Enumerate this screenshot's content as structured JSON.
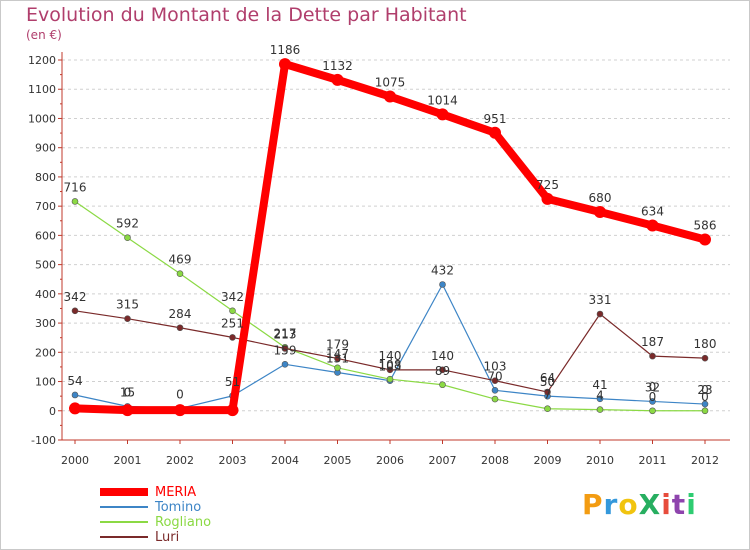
{
  "chart_data": {
    "type": "line",
    "title": "Evolution du Montant de la Dette par Habitant",
    "subtitle": "(en €)",
    "x": [
      "2000",
      "2001",
      "2002",
      "2003",
      "2004",
      "2005",
      "2006",
      "2007",
      "2008",
      "2009",
      "2010",
      "2011",
      "2012"
    ],
    "ylim": [
      -100,
      1200
    ],
    "yticks": [
      -100,
      0,
      100,
      200,
      300,
      400,
      500,
      600,
      700,
      800,
      900,
      1000,
      1100,
      1200
    ],
    "grid": "horizontal dashed",
    "legend_position": "bottom-left",
    "series": [
      {
        "name": "MERIA",
        "color": "#ff0000",
        "values": [
          8,
          2,
          2,
          2,
          1186,
          1132,
          1075,
          1014,
          951,
          725,
          680,
          634,
          586
        ],
        "labels": [
          "",
          "",
          "",
          "",
          "1186",
          "1132",
          "1075",
          "1014",
          "951",
          "725",
          "680",
          "634",
          "586"
        ]
      },
      {
        "name": "Tomino",
        "color": "#3d85c6",
        "values": [
          54,
          15,
          8,
          51,
          159,
          131,
          103,
          432,
          70,
          50,
          41,
          32,
          23
        ],
        "labels": [
          "54",
          "15",
          "",
          "51",
          "159",
          "",
          "",
          "432",
          "",
          "50",
          "41",
          "32",
          "23"
        ]
      },
      {
        "name": "Rogliano",
        "color": "#8bd944",
        "values": [
          716,
          592,
          469,
          342,
          217,
          147,
          108,
          89,
          40,
          7,
          4,
          0,
          0
        ],
        "labels": [
          "716",
          "592",
          "469",
          "342",
          "217",
          "147",
          "108",
          "89",
          "",
          "",
          "4",
          "0",
          "0"
        ]
      },
      {
        "name": "Luri",
        "color": "#7a2a2a",
        "values": [
          342,
          315,
          284,
          251,
          213,
          179,
          140,
          140,
          103,
          64,
          331,
          187,
          180
        ],
        "labels": [
          "342",
          "315",
          "284",
          "251",
          "213",
          "179",
          "140",
          "140",
          "103",
          "64",
          "331",
          "187",
          "180"
        ]
      }
    ]
  },
  "extra_labels": [
    "0",
    "0",
    "0",
    "0",
    "131",
    "103",
    "70",
    "7"
  ],
  "logo": {
    "text": "ProXiti"
  }
}
